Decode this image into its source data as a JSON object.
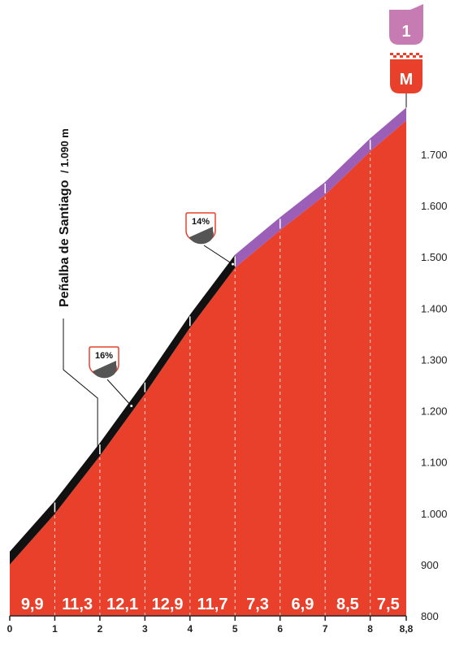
{
  "chart_data": {
    "type": "area",
    "title": "",
    "xlabel": "",
    "ylabel": "",
    "xlim": [
      0,
      8.8
    ],
    "ylim": [
      800,
      1800
    ],
    "x_ticks": [
      {
        "value": 0,
        "label": "0"
      },
      {
        "value": 1,
        "label": "1"
      },
      {
        "value": 2,
        "label": "2"
      },
      {
        "value": 3,
        "label": "3"
      },
      {
        "value": 4,
        "label": "4"
      },
      {
        "value": 5,
        "label": "5"
      },
      {
        "value": 6,
        "label": "6"
      },
      {
        "value": 7,
        "label": "7"
      },
      {
        "value": 8,
        "label": "8"
      },
      {
        "value": 8.8,
        "label": "8,8"
      }
    ],
    "y_ticks": [
      {
        "value": 800,
        "label": "800"
      },
      {
        "value": 900,
        "label": "900"
      },
      {
        "value": 1000,
        "label": "1.000"
      },
      {
        "value": 1100,
        "label": "1.100"
      },
      {
        "value": 1200,
        "label": "1.200"
      },
      {
        "value": 1300,
        "label": "1.300"
      },
      {
        "value": 1400,
        "label": "1.400"
      },
      {
        "value": 1500,
        "label": "1.500"
      },
      {
        "value": 1600,
        "label": "1.600"
      },
      {
        "value": 1700,
        "label": "1.700"
      }
    ],
    "profile": {
      "km": [
        0,
        1,
        2,
        3,
        4,
        5,
        6,
        7,
        8,
        8.8
      ],
      "elevation": [
        900,
        999,
        1112,
        1233,
        1362,
        1479,
        1552,
        1621,
        1706,
        1766
      ]
    },
    "segments": [
      {
        "from": 0,
        "to": 1,
        "gradient": "9,9"
      },
      {
        "from": 1,
        "to": 2,
        "gradient": "11,3"
      },
      {
        "from": 2,
        "to": 3,
        "gradient": "12,1"
      },
      {
        "from": 3,
        "to": 4,
        "gradient": "12,9"
      },
      {
        "from": 4,
        "to": 5,
        "gradient": "11,7"
      },
      {
        "from": 5,
        "to": 6,
        "gradient": "7,3"
      },
      {
        "from": 6,
        "to": 7,
        "gradient": "6,9"
      },
      {
        "from": 7,
        "to": 8,
        "gradient": "8,5"
      },
      {
        "from": 8,
        "to": 8.8,
        "gradient": "7,5"
      }
    ],
    "max_gradients": [
      {
        "km": 2.7,
        "label": "16%"
      },
      {
        "km": 4.95,
        "label": "14%"
      }
    ],
    "pass": {
      "km": 1.95,
      "name": "Peñalba de Santiago",
      "altitude": "/ 1.090 m"
    },
    "summit": {
      "km": 8.8,
      "category": "1",
      "finish_label": "M"
    },
    "colors": {
      "area": "#e8402b",
      "road_lower": "#111111",
      "road_upper": "#9b5fb8",
      "category_badge": "#c77bb3",
      "finish_badge": "#e8402b"
    }
  }
}
